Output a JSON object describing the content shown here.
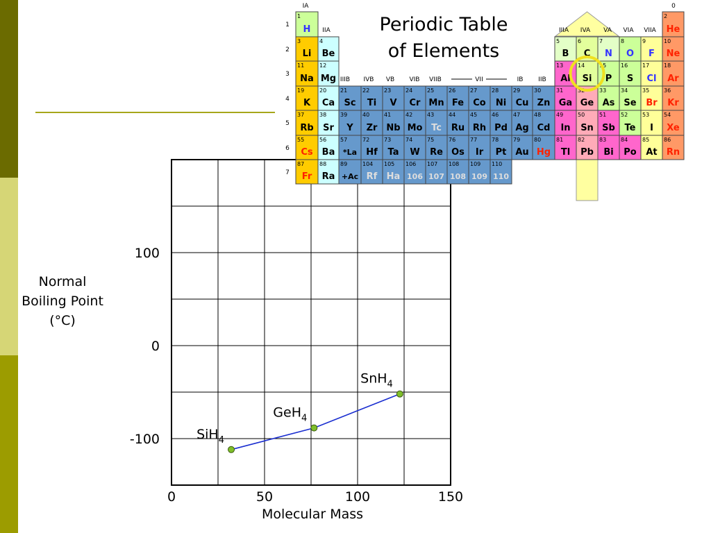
{
  "colors": {
    "sidebar_top": "#6b6b00",
    "sidebar_mid": "#d6d676",
    "sidebar_bottom": "#9c9c00",
    "divider": "#a6a61a",
    "line": "#1a2ed0",
    "marker": "#7fbf2a",
    "alkali": "#ffcc00",
    "alkaline_earth": "#ccffff",
    "transition": "#6699cc",
    "post_transition": "#ff66cc",
    "metalloid_group_highlight": "#ffffa0",
    "nonmetal": "#ccff99",
    "halogen": "#ffff99",
    "noble_gas": "#ff9966",
    "circle": "#f0e020"
  },
  "periodic_table": {
    "title_line1": "Periodic Table",
    "title_line2": "of Elements",
    "group_labels": {
      "IA": "IA",
      "IIA": "IIA",
      "IIIA": "IIIA",
      "IVA": "IVA",
      "VA": "VA",
      "VIA": "VIA",
      "VIIA": "VIIA",
      "zero": "0",
      "IIIB": "IIIB",
      "IVB": "IVB",
      "VB": "VB",
      "VIB": "VIB",
      "VIIB": "VIIB",
      "VII": "VII",
      "IB": "IB",
      "IIB": "IIB"
    },
    "periods": [
      "1",
      "2",
      "3",
      "4",
      "5",
      "6",
      "7"
    ],
    "elements": [
      {
        "n": "1",
        "s": "H",
        "r": 0,
        "c": 0,
        "k": "nonmetal"
      },
      {
        "n": "2",
        "s": "He",
        "r": 0,
        "c": 17,
        "k": "noble_gas"
      },
      {
        "n": "3",
        "s": "Li",
        "r": 1,
        "c": 0,
        "k": "alkali"
      },
      {
        "n": "4",
        "s": "Be",
        "r": 1,
        "c": 1,
        "k": "alkaline_earth"
      },
      {
        "n": "5",
        "s": "B",
        "r": 1,
        "c": 12,
        "k": "nonmetal"
      },
      {
        "n": "6",
        "s": "C",
        "r": 1,
        "c": 13,
        "k": "nonmetal"
      },
      {
        "n": "7",
        "s": "N",
        "r": 1,
        "c": 14,
        "k": "nonmetal"
      },
      {
        "n": "8",
        "s": "O",
        "r": 1,
        "c": 15,
        "k": "nonmetal"
      },
      {
        "n": "9",
        "s": "F",
        "r": 1,
        "c": 16,
        "k": "halogen"
      },
      {
        "n": "10",
        "s": "Ne",
        "r": 1,
        "c": 17,
        "k": "noble_gas"
      },
      {
        "n": "11",
        "s": "Na",
        "r": 2,
        "c": 0,
        "k": "alkali"
      },
      {
        "n": "12",
        "s": "Mg",
        "r": 2,
        "c": 1,
        "k": "alkaline_earth"
      },
      {
        "n": "13",
        "s": "Al",
        "r": 2,
        "c": 12,
        "k": "post_transition"
      },
      {
        "n": "14",
        "s": "Si",
        "r": 2,
        "c": 13,
        "k": "nonmetal"
      },
      {
        "n": "15",
        "s": "P",
        "r": 2,
        "c": 14,
        "k": "nonmetal"
      },
      {
        "n": "16",
        "s": "S",
        "r": 2,
        "c": 15,
        "k": "nonmetal"
      },
      {
        "n": "17",
        "s": "Cl",
        "r": 2,
        "c": 16,
        "k": "halogen"
      },
      {
        "n": "18",
        "s": "Ar",
        "r": 2,
        "c": 17,
        "k": "noble_gas"
      },
      {
        "n": "19",
        "s": "K",
        "r": 3,
        "c": 0,
        "k": "alkali"
      },
      {
        "n": "20",
        "s": "Ca",
        "r": 3,
        "c": 1,
        "k": "alkaline_earth"
      },
      {
        "n": "21",
        "s": "Sc",
        "r": 3,
        "c": 2,
        "k": "transition"
      },
      {
        "n": "22",
        "s": "Ti",
        "r": 3,
        "c": 3,
        "k": "transition"
      },
      {
        "n": "23",
        "s": "V",
        "r": 3,
        "c": 4,
        "k": "transition"
      },
      {
        "n": "24",
        "s": "Cr",
        "r": 3,
        "c": 5,
        "k": "transition"
      },
      {
        "n": "25",
        "s": "Mn",
        "r": 3,
        "c": 6,
        "k": "transition"
      },
      {
        "n": "26",
        "s": "Fe",
        "r": 3,
        "c": 7,
        "k": "transition"
      },
      {
        "n": "27",
        "s": "Co",
        "r": 3,
        "c": 8,
        "k": "transition"
      },
      {
        "n": "28",
        "s": "Ni",
        "r": 3,
        "c": 9,
        "k": "transition"
      },
      {
        "n": "29",
        "s": "Cu",
        "r": 3,
        "c": 10,
        "k": "transition"
      },
      {
        "n": "30",
        "s": "Zn",
        "r": 3,
        "c": 11,
        "k": "transition"
      },
      {
        "n": "31",
        "s": "Ga",
        "r": 3,
        "c": 12,
        "k": "post_transition"
      },
      {
        "n": "32",
        "s": "Ge",
        "r": 3,
        "c": 13,
        "k": "post_transition"
      },
      {
        "n": "33",
        "s": "As",
        "r": 3,
        "c": 14,
        "k": "nonmetal"
      },
      {
        "n": "34",
        "s": "Se",
        "r": 3,
        "c": 15,
        "k": "nonmetal"
      },
      {
        "n": "35",
        "s": "Br",
        "r": 3,
        "c": 16,
        "k": "halogen"
      },
      {
        "n": "36",
        "s": "Kr",
        "r": 3,
        "c": 17,
        "k": "noble_gas"
      },
      {
        "n": "37",
        "s": "Rb",
        "r": 4,
        "c": 0,
        "k": "alkali"
      },
      {
        "n": "38",
        "s": "Sr",
        "r": 4,
        "c": 1,
        "k": "alkaline_earth"
      },
      {
        "n": "39",
        "s": "Y",
        "r": 4,
        "c": 2,
        "k": "transition"
      },
      {
        "n": "40",
        "s": "Zr",
        "r": 4,
        "c": 3,
        "k": "transition"
      },
      {
        "n": "41",
        "s": "Nb",
        "r": 4,
        "c": 4,
        "k": "transition"
      },
      {
        "n": "42",
        "s": "Mo",
        "r": 4,
        "c": 5,
        "k": "transition"
      },
      {
        "n": "43",
        "s": "Tc",
        "r": 4,
        "c": 6,
        "k": "transition"
      },
      {
        "n": "44",
        "s": "Ru",
        "r": 4,
        "c": 7,
        "k": "transition"
      },
      {
        "n": "45",
        "s": "Rh",
        "r": 4,
        "c": 8,
        "k": "transition"
      },
      {
        "n": "46",
        "s": "Pd",
        "r": 4,
        "c": 9,
        "k": "transition"
      },
      {
        "n": "47",
        "s": "Ag",
        "r": 4,
        "c": 10,
        "k": "transition"
      },
      {
        "n": "48",
        "s": "Cd",
        "r": 4,
        "c": 11,
        "k": "transition"
      },
      {
        "n": "49",
        "s": "In",
        "r": 4,
        "c": 12,
        "k": "post_transition"
      },
      {
        "n": "50",
        "s": "Sn",
        "r": 4,
        "c": 13,
        "k": "post_transition"
      },
      {
        "n": "51",
        "s": "Sb",
        "r": 4,
        "c": 14,
        "k": "post_transition"
      },
      {
        "n": "52",
        "s": "Te",
        "r": 4,
        "c": 15,
        "k": "nonmetal"
      },
      {
        "n": "53",
        "s": "I",
        "r": 4,
        "c": 16,
        "k": "halogen"
      },
      {
        "n": "54",
        "s": "Xe",
        "r": 4,
        "c": 17,
        "k": "noble_gas"
      },
      {
        "n": "55",
        "s": "Cs",
        "r": 5,
        "c": 0,
        "k": "alkali"
      },
      {
        "n": "56",
        "s": "Ba",
        "r": 5,
        "c": 1,
        "k": "alkaline_earth"
      },
      {
        "n": "57",
        "s": "*La",
        "r": 5,
        "c": 2,
        "k": "transition"
      },
      {
        "n": "72",
        "s": "Hf",
        "r": 5,
        "c": 3,
        "k": "transition"
      },
      {
        "n": "73",
        "s": "Ta",
        "r": 5,
        "c": 4,
        "k": "transition"
      },
      {
        "n": "74",
        "s": "W",
        "r": 5,
        "c": 5,
        "k": "transition"
      },
      {
        "n": "75",
        "s": "Re",
        "r": 5,
        "c": 6,
        "k": "transition"
      },
      {
        "n": "76",
        "s": "Os",
        "r": 5,
        "c": 7,
        "k": "transition"
      },
      {
        "n": "77",
        "s": "Ir",
        "r": 5,
        "c": 8,
        "k": "transition"
      },
      {
        "n": "78",
        "s": "Pt",
        "r": 5,
        "c": 9,
        "k": "transition"
      },
      {
        "n": "79",
        "s": "Au",
        "r": 5,
        "c": 10,
        "k": "transition"
      },
      {
        "n": "80",
        "s": "Hg",
        "r": 5,
        "c": 11,
        "k": "transition"
      },
      {
        "n": "81",
        "s": "Tl",
        "r": 5,
        "c": 12,
        "k": "post_transition"
      },
      {
        "n": "82",
        "s": "Pb",
        "r": 5,
        "c": 13,
        "k": "post_transition"
      },
      {
        "n": "83",
        "s": "Bi",
        "r": 5,
        "c": 14,
        "k": "post_transition"
      },
      {
        "n": "84",
        "s": "Po",
        "r": 5,
        "c": 15,
        "k": "post_transition"
      },
      {
        "n": "85",
        "s": "At",
        "r": 5,
        "c": 16,
        "k": "halogen"
      },
      {
        "n": "86",
        "s": "Rn",
        "r": 5,
        "c": 17,
        "k": "noble_gas"
      },
      {
        "n": "87",
        "s": "Fr",
        "r": 6,
        "c": 0,
        "k": "alkali"
      },
      {
        "n": "88",
        "s": "Ra",
        "r": 6,
        "c": 1,
        "k": "alkaline_earth"
      },
      {
        "n": "89",
        "s": "+Ac",
        "r": 6,
        "c": 2,
        "k": "transition"
      },
      {
        "n": "104",
        "s": "Rf",
        "r": 6,
        "c": 3,
        "k": "transition"
      },
      {
        "n": "105",
        "s": "Ha",
        "r": 6,
        "c": 4,
        "k": "transition"
      },
      {
        "n": "106",
        "s": "106",
        "r": 6,
        "c": 5,
        "k": "transition"
      },
      {
        "n": "107",
        "s": "107",
        "r": 6,
        "c": 6,
        "k": "transition"
      },
      {
        "n": "108",
        "s": "108",
        "r": 6,
        "c": 7,
        "k": "transition"
      },
      {
        "n": "109",
        "s": "109",
        "r": 6,
        "c": 8,
        "k": "transition"
      },
      {
        "n": "110",
        "s": "110",
        "r": 6,
        "c": 9,
        "k": "transition"
      }
    ]
  },
  "chart_data": {
    "type": "line",
    "title": "",
    "xlabel": "Molecular Mass",
    "ylabel_lines": [
      "Normal",
      "Boiling Point",
      "(°C)"
    ],
    "xlim": [
      0,
      150
    ],
    "ylim": [
      -150,
      200
    ],
    "x_ticks": [
      0,
      50,
      100,
      150
    ],
    "y_ticks": [
      100,
      0,
      -100
    ],
    "grid": true,
    "series": [
      {
        "x": [
          32.1,
          76.6,
          122.7
        ],
        "y": [
          -111.8,
          -88.5,
          -52.0
        ],
        "labels": [
          "SiH",
          "GeH",
          "SnH"
        ],
        "label_subscripts": [
          "4",
          "4",
          "4"
        ]
      }
    ]
  }
}
